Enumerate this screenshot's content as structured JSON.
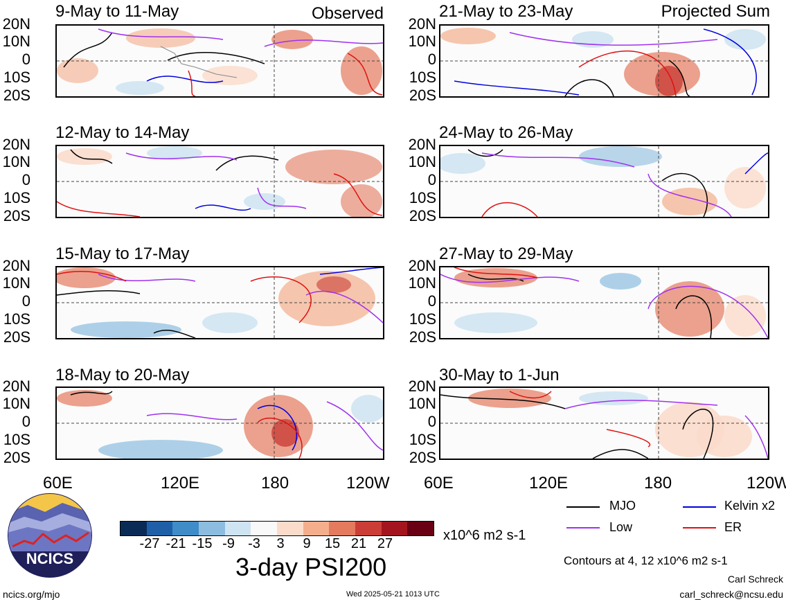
{
  "colors": {
    "mjo": "#000000",
    "low": "#a030f0",
    "kelvin": "#0000e0",
    "er": "#e01010",
    "scale": [
      "#0b2b57",
      "#1f5fa8",
      "#3f8cc8",
      "#8cbde0",
      "#cfe4f2",
      "#f9f9f9",
      "#fbdccb",
      "#f4ae8c",
      "#e47a5e",
      "#cb3e37",
      "#a4141f",
      "#6a0013"
    ]
  },
  "left_column": {
    "tag": "Observed",
    "panels": [
      {
        "title": "9-May to 11-May"
      },
      {
        "title": "12-May to 14-May"
      },
      {
        "title": "15-May to 17-May"
      },
      {
        "title": "18-May to 20-May"
      }
    ]
  },
  "right_column": {
    "tag": "Projected Sum",
    "panels": [
      {
        "title": "21-May to 23-May"
      },
      {
        "title": "24-May to 26-May"
      },
      {
        "title": "27-May to 29-May"
      },
      {
        "title": "30-May to 1-Jun"
      }
    ]
  },
  "lat_labels": [
    "20N",
    "10N",
    "0",
    "10S",
    "20S"
  ],
  "lon_labels": [
    "60E",
    "120E",
    "180",
    "120W"
  ],
  "colorbar": {
    "ticks": [
      "-27",
      "-21",
      "-15",
      "-9",
      "-3",
      "3",
      "9",
      "15",
      "21",
      "27"
    ],
    "units": "x10^6 m2 s-1",
    "title": "3-day PSI200"
  },
  "legend": {
    "mjo": "MJO",
    "kelvin": "Kelvin x2",
    "low": "Low",
    "er": "ER",
    "contours": "Contours at 4, 12 x10^6 m2 s-1"
  },
  "logo_text": "NCICS",
  "footer": {
    "url": "ncics.org/mjo",
    "timestamp": "Wed 2025-05-21 1013 UTC",
    "author": "Carl Schreck",
    "email": "carl_schreck@ncsu.edu"
  }
}
